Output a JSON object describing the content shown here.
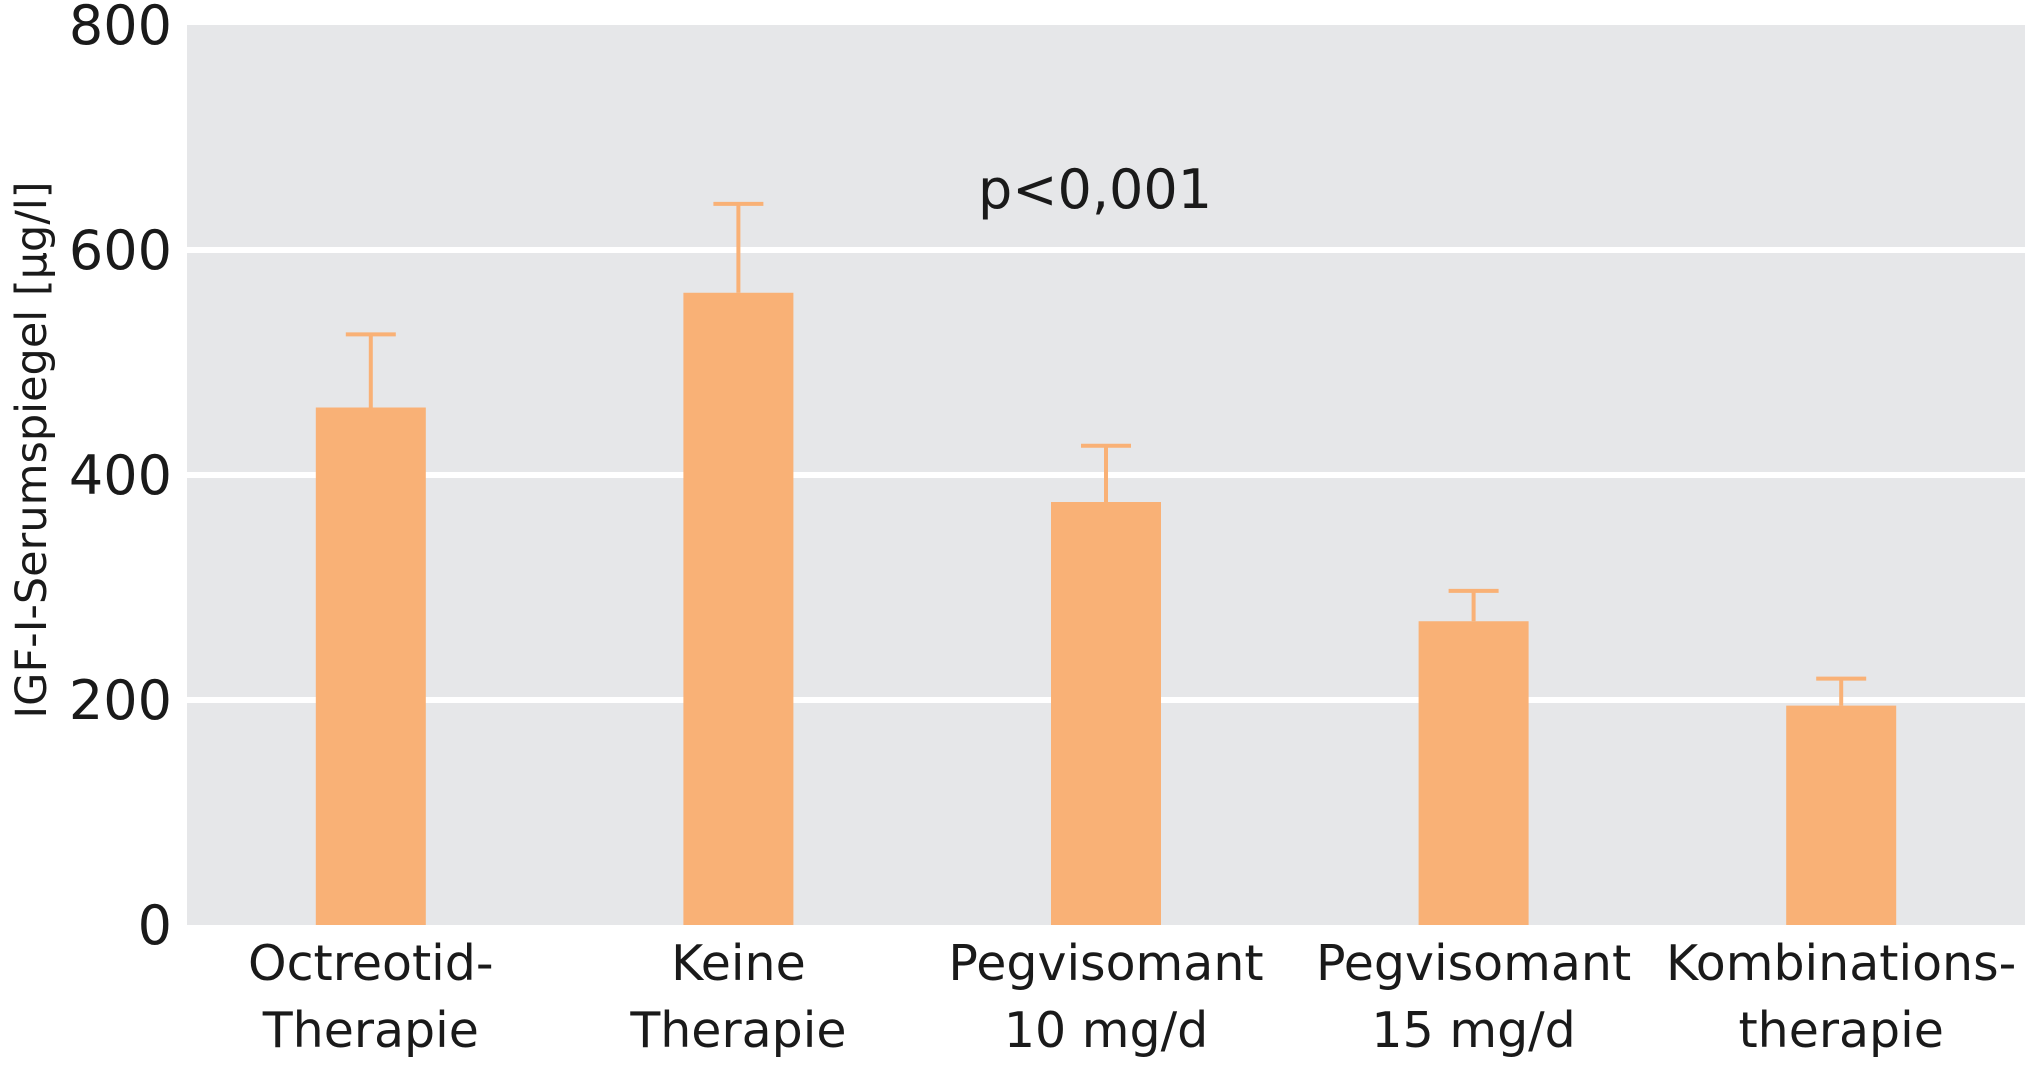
{
  "chart_data": {
    "type": "bar",
    "categories": [
      [
        "Octreotid-",
        "Therapie"
      ],
      [
        "Keine",
        "Therapie"
      ],
      [
        "Pegvisomant",
        "10 mg/d"
      ],
      [
        "Pegvisomant",
        "15 mg/d"
      ],
      [
        "Kombinations-",
        "therapie"
      ]
    ],
    "values": [
      460,
      562,
      376,
      270,
      195
    ],
    "error_upper": [
      525,
      641,
      426,
      297,
      219
    ],
    "title": "",
    "xlabel": "",
    "ylabel": "IGF-I-Serumspiegel [µg/l]",
    "ylim": [
      0,
      800
    ],
    "yticks": [
      0,
      200,
      400,
      600,
      800
    ],
    "annotation": "p<0,001",
    "grid": true,
    "bar_color": "#f9b176",
    "background_color": "#e6e7e9",
    "grid_color": "#ffffff"
  }
}
